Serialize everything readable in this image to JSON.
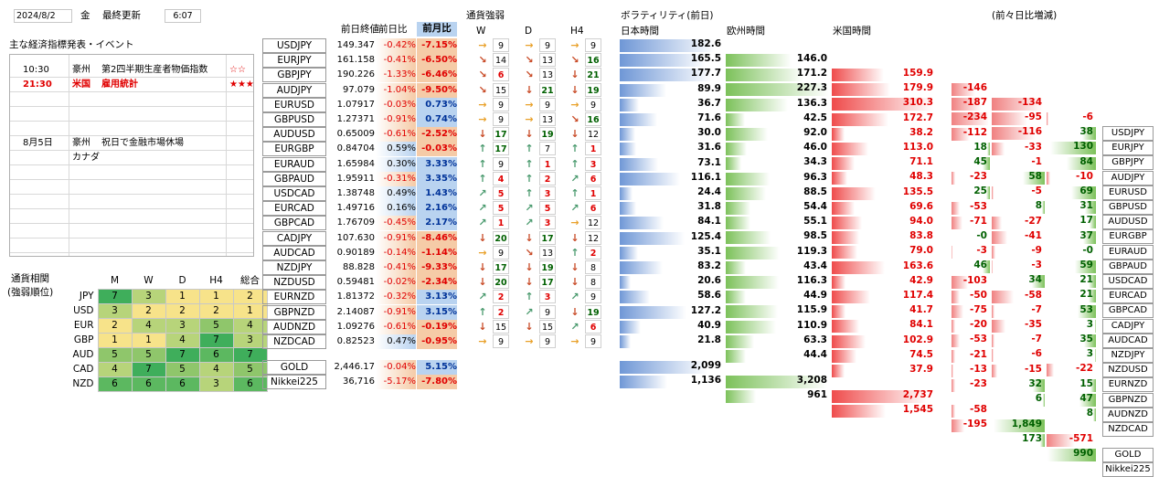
{
  "header": {
    "date": "2024/8/2",
    "weekday": "金",
    "updated_label": "最終更新",
    "updated_time": "6:07"
  },
  "events": {
    "title": "主な経済指標発表・イベント",
    "rows": [
      {
        "time": "10:30",
        "region": "豪州",
        "name": "第2四半期生産者物価指数",
        "importance": "☆☆",
        "highlight": false
      },
      {
        "time": "21:30",
        "region": "米国",
        "name": "雇用統計",
        "importance": "★★★",
        "highlight": true
      },
      {
        "time": "",
        "region": "",
        "name": "",
        "importance": "",
        "highlight": false
      },
      {
        "time": "",
        "region": "",
        "name": "",
        "importance": "",
        "highlight": false
      },
      {
        "time": "",
        "region": "",
        "name": "",
        "importance": "",
        "highlight": false
      },
      {
        "time": "8月5日",
        "region": "豪州",
        "name": "祝日で金融市場休場",
        "importance": "",
        "highlight": false
      },
      {
        "time": "",
        "region": "カナダ",
        "name": "",
        "importance": "",
        "highlight": false
      }
    ]
  },
  "strength_matrix": {
    "title": "通貨相関",
    "subtitle": "(強弱順位)",
    "columns": [
      "M",
      "W",
      "D",
      "H4",
      "総合"
    ],
    "rows": [
      {
        "ccy": "JPY",
        "vals": [
          7,
          3,
          1,
          1,
          2
        ],
        "colors": [
          "#3fae5b",
          "#b7d47a",
          "#f7e38a",
          "#f7e38a",
          "#f7e38a"
        ]
      },
      {
        "ccy": "USD",
        "vals": [
          3,
          2,
          2,
          2,
          1
        ],
        "colors": [
          "#b7d47a",
          "#f7e38a",
          "#f7e38a",
          "#f7e38a",
          "#f7e38a"
        ]
      },
      {
        "ccy": "EUR",
        "vals": [
          2,
          4,
          3,
          5,
          4
        ],
        "colors": [
          "#f7e38a",
          "#b7d47a",
          "#b7d47a",
          "#8fc66b",
          "#b7d47a"
        ]
      },
      {
        "ccy": "GBP",
        "vals": [
          1,
          1,
          4,
          7,
          3
        ],
        "colors": [
          "#f7e38a",
          "#f7e38a",
          "#b7d47a",
          "#3fae5b",
          "#b7d47a"
        ]
      },
      {
        "ccy": "AUD",
        "vals": [
          5,
          5,
          7,
          6,
          7
        ],
        "colors": [
          "#8fc66b",
          "#8fc66b",
          "#3fae5b",
          "#5cb860",
          "#3fae5b"
        ]
      },
      {
        "ccy": "CAD",
        "vals": [
          4,
          7,
          5,
          4,
          5
        ],
        "colors": [
          "#b7d47a",
          "#3fae5b",
          "#8fc66b",
          "#b7d47a",
          "#8fc66b"
        ]
      },
      {
        "ccy": "NZD",
        "vals": [
          6,
          6,
          6,
          3,
          6
        ],
        "colors": [
          "#5cb860",
          "#5cb860",
          "#5cb860",
          "#b7d47a",
          "#5cb860"
        ]
      }
    ]
  },
  "col_headers": {
    "prev_close": "前日終値",
    "prev_day": "前日比",
    "prev_month": "前月比",
    "strength": "通貨強弱",
    "w": "W",
    "d": "D",
    "h4": "H4",
    "vol_title": "ボラティリティ(前日)",
    "vol_jp": "日本時間",
    "vol_eu": "欧州時間",
    "vol_us": "米国時間",
    "diff_title": "(前々日比増減)"
  },
  "pairs": [
    {
      "pair": "USDJPY",
      "close": "149.347",
      "day": "-0.42%",
      "month": "-7.15%",
      "w": "→",
      "wn": "9",
      "d": "→",
      "dn": "9",
      "h4": "→",
      "h4n": "9",
      "jp": "182.6",
      "eu": "146.0",
      "us": "159.9",
      "dj": "-146",
      "de": "-134",
      "du": "-6"
    },
    {
      "pair": "EURJPY",
      "close": "161.158",
      "day": "-0.41%",
      "month": "-6.50%",
      "w": "↘",
      "wn": "14",
      "d": "↘",
      "dn": "13",
      "h4": "↘",
      "h4n": "16",
      "jp": "165.5",
      "eu": "171.2",
      "us": "179.9",
      "dj": "-187",
      "de": "-95",
      "du": "38"
    },
    {
      "pair": "GBPJPY",
      "close": "190.226",
      "day": "-1.33%",
      "month": "-6.46%",
      "w": "↘",
      "wn": "6",
      "d": "↘",
      "dn": "13",
      "h4": "↓",
      "h4n": "21",
      "jp": "177.7",
      "eu": "227.3",
      "us": "310.3",
      "dj": "-234",
      "de": "-116",
      "du": "130"
    },
    {
      "pair": "AUDJPY",
      "close": "97.079",
      "day": "-1.04%",
      "month": "-9.50%",
      "w": "↘",
      "wn": "15",
      "d": "↓",
      "dn": "21",
      "h4": "↓",
      "h4n": "19",
      "jp": "89.9",
      "eu": "136.3",
      "us": "172.7",
      "dj": "-112",
      "de": "-33",
      "du": "84"
    },
    {
      "pair": "EURUSD",
      "close": "1.07917",
      "day": "-0.03%",
      "month": "0.73%",
      "w": "→",
      "wn": "9",
      "d": "→",
      "dn": "9",
      "h4": "→",
      "h4n": "9",
      "jp": "36.7",
      "eu": "42.5",
      "us": "38.2",
      "dj": "18",
      "de": "-1",
      "du": "-10"
    },
    {
      "pair": "GBPUSD",
      "close": "1.27371",
      "day": "-0.91%",
      "month": "0.74%",
      "w": "→",
      "wn": "9",
      "d": "→",
      "dn": "13",
      "h4": "↘",
      "h4n": "16",
      "jp": "71.6",
      "eu": "92.0",
      "us": "113.0",
      "dj": "45",
      "de": "58",
      "du": "69"
    },
    {
      "pair": "AUDUSD",
      "close": "0.65009",
      "day": "-0.61%",
      "month": "-2.52%",
      "w": "↓",
      "wn": "17",
      "d": "↓",
      "dn": "19",
      "h4": "↓",
      "h4n": "12",
      "jp": "30.0",
      "eu": "46.0",
      "us": "71.1",
      "dj": "-23",
      "de": "-5",
      "du": "31"
    },
    {
      "pair": "EURGBP",
      "close": "0.84704",
      "day": "0.59%",
      "month": "-0.03%",
      "w": "↑",
      "wn": "17",
      "d": "↑",
      "dn": "7",
      "h4": "↑",
      "h4n": "1",
      "jp": "31.6",
      "eu": "34.3",
      "us": "48.3",
      "dj": "25",
      "de": "8",
      "du": "17"
    },
    {
      "pair": "EURAUD",
      "close": "1.65984",
      "day": "0.30%",
      "month": "3.33%",
      "w": "↑",
      "wn": "9",
      "d": "↑",
      "dn": "1",
      "h4": "↑",
      "h4n": "3",
      "jp": "73.1",
      "eu": "96.3",
      "us": "135.5",
      "dj": "-53",
      "de": "-27",
      "du": "37"
    },
    {
      "pair": "GBPAUD",
      "close": "1.95911",
      "day": "-0.31%",
      "month": "3.35%",
      "w": "↑",
      "wn": "4",
      "d": "↑",
      "dn": "2",
      "h4": "↗",
      "h4n": "6",
      "jp": "116.1",
      "eu": "88.5",
      "us": "69.6",
      "dj": "-71",
      "de": "-41",
      "du": "-0"
    },
    {
      "pair": "USDCAD",
      "close": "1.38748",
      "day": "0.49%",
      "month": "1.43%",
      "w": "↗",
      "wn": "5",
      "d": "↑",
      "dn": "3",
      "h4": "↑",
      "h4n": "1",
      "jp": "24.4",
      "eu": "54.4",
      "us": "94.0",
      "dj": "-0",
      "de": "-9",
      "du": "59"
    },
    {
      "pair": "EURCAD",
      "close": "1.49716",
      "day": "0.16%",
      "month": "2.16%",
      "w": "↗",
      "wn": "5",
      "d": "↗",
      "dn": "5",
      "h4": "↗",
      "h4n": "6",
      "jp": "31.8",
      "eu": "55.1",
      "us": "83.8",
      "dj": "-3",
      "de": "-3",
      "du": "21"
    },
    {
      "pair": "GBPCAD",
      "close": "1.76709",
      "day": "-0.45%",
      "month": "2.17%",
      "w": "↗",
      "wn": "1",
      "d": "↗",
      "dn": "3",
      "h4": "→",
      "h4n": "12",
      "jp": "84.1",
      "eu": "98.5",
      "us": "79.0",
      "dj": "46",
      "de": "34",
      "du": "21"
    },
    {
      "pair": "CADJPY",
      "close": "107.630",
      "day": "-0.91%",
      "month": "-8.46%",
      "w": "↓",
      "wn": "20",
      "d": "↓",
      "dn": "17",
      "h4": "↓",
      "h4n": "12",
      "jp": "125.4",
      "eu": "119.3",
      "us": "163.6",
      "dj": "-103",
      "de": "-58",
      "du": "53"
    },
    {
      "pair": "AUDCAD",
      "close": "0.90189",
      "day": "-0.14%",
      "month": "-1.14%",
      "w": "→",
      "wn": "9",
      "d": "↘",
      "dn": "13",
      "h4": "↑",
      "h4n": "2",
      "jp": "35.1",
      "eu": "43.4",
      "us": "42.9",
      "dj": "-50",
      "de": "-7",
      "du": "3"
    },
    {
      "pair": "NZDJPY",
      "close": "88.828",
      "day": "-0.41%",
      "month": "-9.33%",
      "w": "↓",
      "wn": "17",
      "d": "↓",
      "dn": "19",
      "h4": "↓",
      "h4n": "8",
      "jp": "83.2",
      "eu": "116.3",
      "us": "117.4",
      "dj": "-75",
      "de": "-35",
      "du": "35"
    },
    {
      "pair": "NZDUSD",
      "close": "0.59481",
      "day": "-0.02%",
      "month": "-2.34%",
      "w": "↓",
      "wn": "20",
      "d": "↓",
      "dn": "17",
      "h4": "↓",
      "h4n": "8",
      "jp": "20.6",
      "eu": "44.9",
      "us": "41.7",
      "dj": "-20",
      "de": "-7",
      "du": "3"
    },
    {
      "pair": "EURNZD",
      "close": "1.81372",
      "day": "-0.32%",
      "month": "3.13%",
      "w": "↗",
      "wn": "2",
      "d": "↑",
      "dn": "3",
      "h4": "↗",
      "h4n": "9",
      "jp": "58.6",
      "eu": "115.9",
      "us": "84.1",
      "dj": "-53",
      "de": "-6",
      "du": "-22"
    },
    {
      "pair": "GBPNZD",
      "close": "2.14087",
      "day": "-0.91%",
      "month": "3.15%",
      "w": "↑",
      "wn": "2",
      "d": "↗",
      "dn": "9",
      "h4": "↓",
      "h4n": "19",
      "jp": "127.2",
      "eu": "110.9",
      "us": "102.9",
      "dj": "-21",
      "de": "-15",
      "du": "15"
    },
    {
      "pair": "AUDNZD",
      "close": "1.09276",
      "day": "-0.61%",
      "month": "-0.19%",
      "w": "↓",
      "wn": "15",
      "d": "↓",
      "dn": "15",
      "h4": "↗",
      "h4n": "6",
      "jp": "40.9",
      "eu": "63.3",
      "us": "74.5",
      "dj": "-13",
      "de": "32",
      "du": "47"
    },
    {
      "pair": "NZDCAD",
      "close": "0.82523",
      "day": "0.47%",
      "month": "-0.95%",
      "w": "→",
      "wn": "9",
      "d": "→",
      "dn": "9",
      "h4": "→",
      "h4n": "9",
      "jp": "21.8",
      "eu": "44.4",
      "us": "37.9",
      "dj": "-23",
      "de": "6",
      "du": "8"
    }
  ],
  "extras": [
    {
      "pair": "GOLD",
      "close": "2,446.17",
      "day": "-0.04%",
      "month": "5.15%",
      "jp": "2,099",
      "eu": "3,208",
      "us": "2,737",
      "dj": "-58",
      "de": "1,849",
      "du": "-571"
    },
    {
      "pair": "Nikkei225",
      "close": "36,716",
      "day": "-5.17%",
      "month": "-7.80%",
      "jp": "1,136",
      "eu": "961",
      "us": "1,545",
      "dj": "-195",
      "de": "173",
      "du": "990"
    }
  ],
  "colors": {
    "neg": "#e00000",
    "pos": "#006000",
    "blue_bar": "#6f97d6",
    "green_bar": "#7cc15a",
    "red_bar": "#ef4b4b",
    "month_col": "#f5cba7",
    "month_hdr": "#b9d3f0",
    "arrow_up": "#4a9a6e",
    "arrow_down": "#c84a26",
    "arrow_side": "#e9a12a"
  }
}
